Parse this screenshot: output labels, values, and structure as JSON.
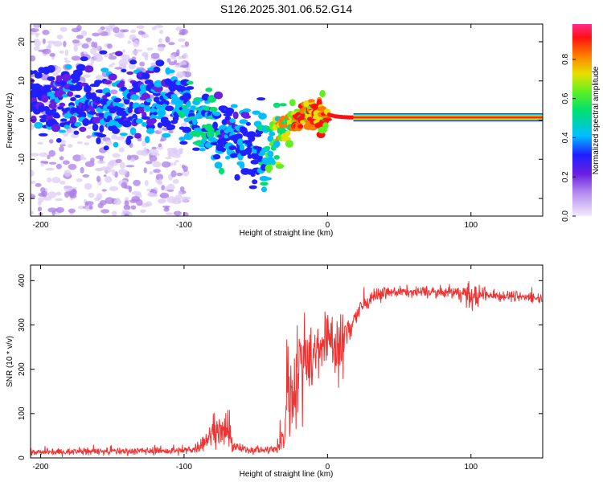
{
  "title": "S126.2025.301.06.52.G14",
  "chart_data": [
    {
      "type": "heatmap",
      "xlabel": "Height of straight line (km)",
      "ylabel": "Frequency (Hz)",
      "xlim": [
        -207,
        150
      ],
      "ylim": [
        -24.5,
        24.5
      ],
      "xticks": [
        -200,
        -100,
        0,
        100
      ],
      "yticks": [
        -20,
        -10,
        0,
        10,
        20
      ],
      "colorbar": {
        "label": "Normalized spectral amplitude",
        "range": [
          0,
          0.98
        ],
        "ticks": [
          "0.0",
          "0.2",
          "0.4",
          "0.6",
          "0.8"
        ],
        "colormap": [
          "#d9c7f5",
          "#6a1fe0",
          "#1f1fff",
          "#00bfff",
          "#00e070",
          "#60f020",
          "#e8e000",
          "#ff7a00",
          "#ff1010",
          "#ff2a8a"
        ]
      },
      "ridge": {
        "x": [
          -207,
          -180,
          -160,
          -140,
          -120,
          -105,
          -95,
          -85,
          -75,
          -65,
          -55,
          -45,
          -40,
          -35,
          -30,
          -25,
          -20,
          -15,
          -10,
          -5,
          0,
          5,
          10,
          15,
          20,
          40,
          60,
          80,
          100,
          120,
          150
        ],
        "y": [
          6,
          5,
          4,
          4.5,
          5,
          5,
          2,
          0,
          -2,
          -4,
          -6,
          -8,
          -6,
          -4,
          -1,
          0,
          0.5,
          1,
          1,
          1.5,
          1.5,
          1,
          0.8,
          0.7,
          0.7,
          0.7,
          0.7,
          0.7,
          0.7,
          0.7,
          0.7
        ],
        "amplitude": [
          0.25,
          0.28,
          0.3,
          0.3,
          0.3,
          0.35,
          0.4,
          0.38,
          0.35,
          0.32,
          0.3,
          0.4,
          0.5,
          0.6,
          0.7,
          0.75,
          0.8,
          0.85,
          0.88,
          0.9,
          0.92,
          0.95,
          0.95,
          0.95,
          0.96,
          0.97,
          0.97,
          0.97,
          0.97,
          0.97,
          0.97
        ]
      }
    },
    {
      "type": "line",
      "xlabel": "Height of straight line (km)",
      "ylabel": "SNR (10 * v/v)",
      "xlim": [
        -207,
        150
      ],
      "ylim": [
        0,
        435
      ],
      "xticks": [
        -200,
        -100,
        0,
        100
      ],
      "yticks": [
        0,
        100,
        200,
        300,
        400
      ],
      "color": "#ee3333",
      "envelope": {
        "x": [
          -207,
          -180,
          -150,
          -120,
          -100,
          -90,
          -80,
          -75,
          -70,
          -65,
          -60,
          -50,
          -40,
          -35,
          -30,
          -28,
          -25,
          -20,
          -15,
          -10,
          -5,
          0,
          5,
          10,
          15,
          20,
          25,
          30,
          40,
          50,
          60,
          80,
          95,
          100,
          110,
          130,
          150
        ],
        "mean": [
          12,
          14,
          15,
          16,
          15,
          25,
          55,
          65,
          50,
          28,
          20,
          18,
          18,
          20,
          50,
          180,
          140,
          210,
          230,
          230,
          255,
          270,
          265,
          240,
          300,
          320,
          345,
          360,
          372,
          375,
          374,
          373,
          372,
          362,
          368,
          365,
          360
        ],
        "noise": [
          6,
          6,
          7,
          7,
          8,
          12,
          25,
          30,
          30,
          15,
          8,
          8,
          8,
          10,
          30,
          100,
          80,
          90,
          90,
          70,
          60,
          50,
          60,
          70,
          40,
          25,
          15,
          12,
          10,
          10,
          10,
          10,
          15,
          30,
          12,
          10,
          10
        ]
      }
    }
  ]
}
